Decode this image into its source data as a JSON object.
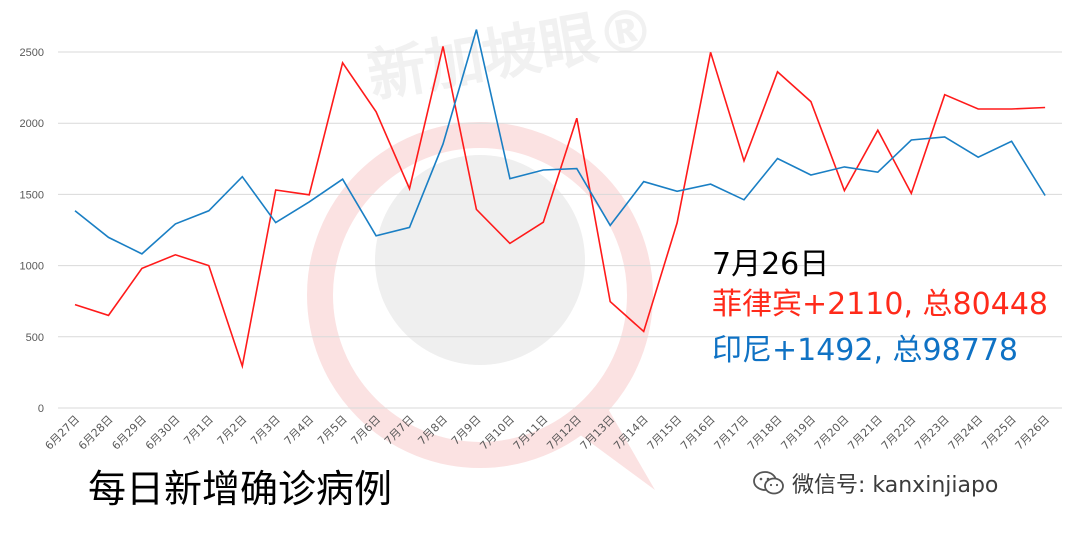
{
  "watermark": {
    "text": "新加坡眼®"
  },
  "annotation": {
    "date": "7月26日",
    "philippines": "菲律宾+2110, 总80448",
    "indonesia": "印尼+1492, 总98778",
    "philippines_color": "#ff2a1a",
    "indonesia_color": "#0f72c4"
  },
  "main_title": "每日新增确诊病例",
  "footer": {
    "icon": "wechat-icon",
    "text": "微信号: kanxinjiapo"
  },
  "chart_data": {
    "type": "line",
    "title": "",
    "xlabel": "",
    "ylabel": "",
    "ylim": [
      0,
      2500
    ],
    "yticks": [
      0,
      500,
      1000,
      1500,
      2000,
      2500
    ],
    "grid": true,
    "categories": [
      "6月27日",
      "6月28日",
      "6月29日",
      "6月30日",
      "7月1日",
      "7月2日",
      "7月3日",
      "7月4日",
      "7月5日",
      "7月6日",
      "7月7日",
      "7月8日",
      "7月9日",
      "7月10日",
      "7月11日",
      "7月12日",
      "7月13日",
      "7月14日",
      "7月15日",
      "7月16日",
      "7月17日",
      "7月18日",
      "7月19日",
      "7月20日",
      "7月21日",
      "7月22日",
      "7月23日",
      "7月24日",
      "7月25日",
      "7月26日"
    ],
    "series": [
      {
        "color": "#ff1a1a",
        "values": [
          726,
          650,
          980,
          1076,
          1000,
          294,
          1531,
          1497,
          2424,
          2080,
          1540,
          2539,
          1395,
          1156,
          1305,
          2035,
          747,
          537,
          1300,
          2498,
          1736,
          2361,
          2152,
          1527,
          1951,
          1507,
          2200,
          2100,
          2100,
          2110
        ]
      },
      {
        "color": "#1a7fc4",
        "values": [
          1385,
          1198,
          1082,
          1293,
          1385,
          1624,
          1302,
          1447,
          1607,
          1209,
          1268,
          1853,
          2657,
          1611,
          1671,
          1681,
          1282,
          1590,
          1522,
          1572,
          1462,
          1752,
          1636,
          1693,
          1656,
          1882,
          1904,
          1761,
          1873,
          1492
        ]
      }
    ]
  }
}
